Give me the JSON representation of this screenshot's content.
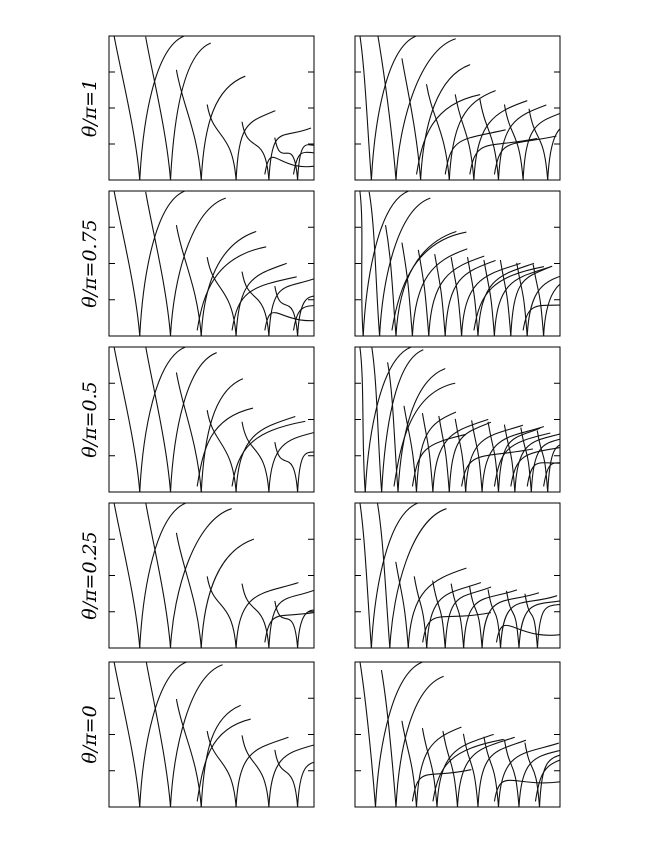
{
  "chart_data": {
    "type": "line",
    "layout": "5 rows x 2 columns of small-multiple panels",
    "axes": {
      "ticks_shown": true,
      "tick_labels_shown": false,
      "grid": false,
      "x_ticks_per_panel": 0,
      "y_ticks_per_panel": 3
    },
    "row_labels": [
      "θ/π=1",
      "θ/π=0.75",
      "θ/π=0.5",
      "θ/π=0.25",
      "θ/π=0"
    ],
    "curve_color": "#111111",
    "panels": [
      {
        "row": 0,
        "col": 0,
        "theta_over_pi": 1,
        "roots_x": [
          0.15,
          0.3,
          0.45,
          0.62,
          0.78,
          0.92
        ],
        "peak_y": [
          1.0,
          0.95,
          0.72,
          0.48,
          0.36,
          0.25
        ]
      },
      {
        "row": 0,
        "col": 1,
        "theta_over_pi": 1,
        "roots_x": [
          0.08,
          0.2,
          0.32,
          0.46,
          0.58,
          0.7,
          0.82,
          0.94
        ],
        "peak_y": [
          1.0,
          0.98,
          0.8,
          0.62,
          0.55,
          0.52,
          0.48,
          0.45
        ]
      },
      {
        "row": 1,
        "col": 0,
        "theta_over_pi": 0.75,
        "roots_x": [
          0.15,
          0.3,
          0.45,
          0.62,
          0.78,
          0.92
        ],
        "peak_y": [
          1.0,
          0.95,
          0.72,
          0.5,
          0.4,
          0.3
        ]
      },
      {
        "row": 1,
        "col": 1,
        "theta_over_pi": 0.75,
        "roots_x": [
          0.04,
          0.12,
          0.2,
          0.28,
          0.36,
          0.44,
          0.52,
          0.6,
          0.68,
          0.76,
          0.84,
          0.92
        ],
        "peak_y": [
          1.0,
          0.95,
          0.72,
          0.6,
          0.55,
          0.52,
          0.5,
          0.5,
          0.48,
          0.48,
          0.46,
          0.45
        ]
      },
      {
        "row": 2,
        "col": 0,
        "theta_over_pi": 0.5,
        "roots_x": [
          0.15,
          0.3,
          0.45,
          0.62,
          0.78,
          0.92
        ],
        "peak_y": [
          1.0,
          0.96,
          0.78,
          0.52,
          0.44,
          0.3
        ]
      },
      {
        "row": 2,
        "col": 1,
        "theta_over_pi": 0.5,
        "roots_x": [
          0.05,
          0.13,
          0.21,
          0.3,
          0.38,
          0.46,
          0.54,
          0.62,
          0.7,
          0.78,
          0.86,
          0.94
        ],
        "peak_y": [
          1.0,
          0.98,
          0.85,
          0.55,
          0.5,
          0.48,
          0.46,
          0.45,
          0.44,
          0.42,
          0.4,
          0.38
        ]
      },
      {
        "row": 3,
        "col": 0,
        "theta_over_pi": 0.25,
        "roots_x": [
          0.15,
          0.3,
          0.45,
          0.62,
          0.78,
          0.92
        ],
        "peak_y": [
          1.0,
          0.96,
          0.75,
          0.45,
          0.4,
          0.28
        ]
      },
      {
        "row": 3,
        "col": 1,
        "theta_over_pi": 0.25,
        "roots_x": [
          0.08,
          0.17,
          0.26,
          0.35,
          0.44,
          0.53,
          0.62,
          0.71,
          0.8,
          0.89
        ],
        "peak_y": [
          1.0,
          0.96,
          0.55,
          0.45,
          0.42,
          0.4,
          0.38,
          0.36,
          0.35,
          0.33
        ]
      },
      {
        "row": 4,
        "col": 0,
        "theta_over_pi": 0,
        "roots_x": [
          0.15,
          0.3,
          0.45,
          0.62,
          0.78,
          0.92
        ],
        "peak_y": [
          1.0,
          0.98,
          0.7,
          0.48,
          0.45,
          0.35
        ]
      },
      {
        "row": 4,
        "col": 1,
        "theta_over_pi": 0,
        "roots_x": [
          0.1,
          0.2,
          0.3,
          0.4,
          0.5,
          0.6,
          0.7,
          0.8,
          0.9
        ],
        "peak_y": [
          1.0,
          0.9,
          0.55,
          0.5,
          0.48,
          0.46,
          0.44,
          0.42,
          0.4
        ]
      }
    ]
  }
}
